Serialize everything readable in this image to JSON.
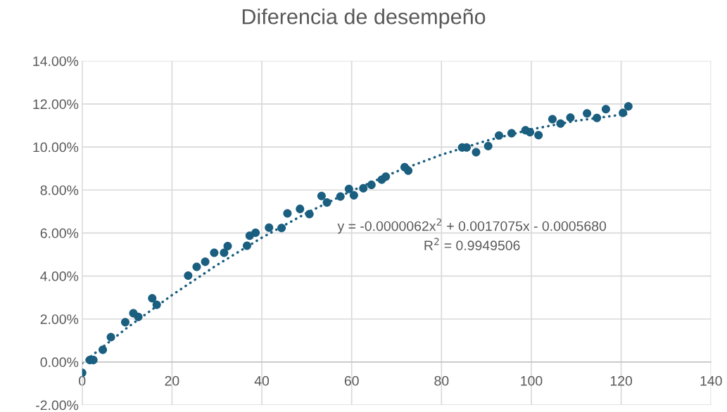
{
  "chart_data": {
    "type": "scatter",
    "title": "Diferencia de desempeño",
    "xlim": [
      0,
      140
    ],
    "xticks": [
      0,
      20,
      40,
      60,
      80,
      100,
      120,
      140
    ],
    "ylim": [
      -2,
      14
    ],
    "yticks": [
      {
        "value": -2,
        "label": "-2.00%"
      },
      {
        "value": 0,
        "label": "0.00%"
      },
      {
        "value": 2,
        "label": "2.00%"
      },
      {
        "value": 4,
        "label": "4.00%"
      },
      {
        "value": 6,
        "label": "6.00%"
      },
      {
        "value": 8,
        "label": "8.00%"
      },
      {
        "value": 10,
        "label": "10.00%"
      },
      {
        "value": 12,
        "label": "12.00%"
      },
      {
        "value": 14,
        "label": "14.00%"
      }
    ],
    "grid": true,
    "marker": "circle",
    "series": [
      {
        "color": "#1a5e80",
        "x": [
          0,
          1.7,
          2.5,
          4.6,
          6.4,
          9.6,
          11.4,
          12.5,
          15.6,
          16.6,
          23.6,
          25.5,
          27.4,
          29.4,
          31.6,
          32.4,
          36.7,
          37.3,
          38.6,
          41.6,
          44.4,
          45.7,
          48.5,
          50.6,
          53.3,
          54.5,
          57.5,
          59.4,
          60.5,
          62.6,
          64.4,
          66.7,
          67.6,
          71.8,
          72.6,
          84.6,
          85.6,
          87.7,
          90.4,
          92.8,
          95.6,
          98.7,
          99.7,
          101.6,
          104.7,
          106.5,
          108.7,
          112.4,
          114.6,
          116.6,
          120.4,
          121.6
        ],
        "values": [
          -0.5,
          0.09,
          0.09,
          0.57,
          1.16,
          1.85,
          2.27,
          2.1,
          2.96,
          2.66,
          4.02,
          4.43,
          4.66,
          5.08,
          5.08,
          5.39,
          5.41,
          5.87,
          6.01,
          6.25,
          6.23,
          6.91,
          7.12,
          6.88,
          7.72,
          7.42,
          7.7,
          8.05,
          7.75,
          8.08,
          8.24,
          8.48,
          8.62,
          9.06,
          8.9,
          9.98,
          9.98,
          9.76,
          10.04,
          10.53,
          10.64,
          10.78,
          10.69,
          10.55,
          11.29,
          11.09,
          11.37,
          11.56,
          11.35,
          11.76,
          11.59,
          11.89
        ]
      },
      {
        "type": "line",
        "color": "#1a5e80",
        "line_style": "dotted",
        "marker": "none",
        "x": [
          0,
          10,
          20,
          30,
          40,
          50,
          60,
          70,
          80,
          90,
          100,
          110,
          120,
          122
        ],
        "values": [
          -0.06,
          1.59,
          3.11,
          4.51,
          5.78,
          6.93,
          7.96,
          8.86,
          9.64,
          10.29,
          10.82,
          11.22,
          11.5,
          11.55
        ]
      }
    ],
    "annotations": [
      "y = -0.0000062x$^{2}$ + 0.0017075x - 0.0005680",
      "R$^{2}$ = 0.9949506"
    ],
    "legend": false
  }
}
